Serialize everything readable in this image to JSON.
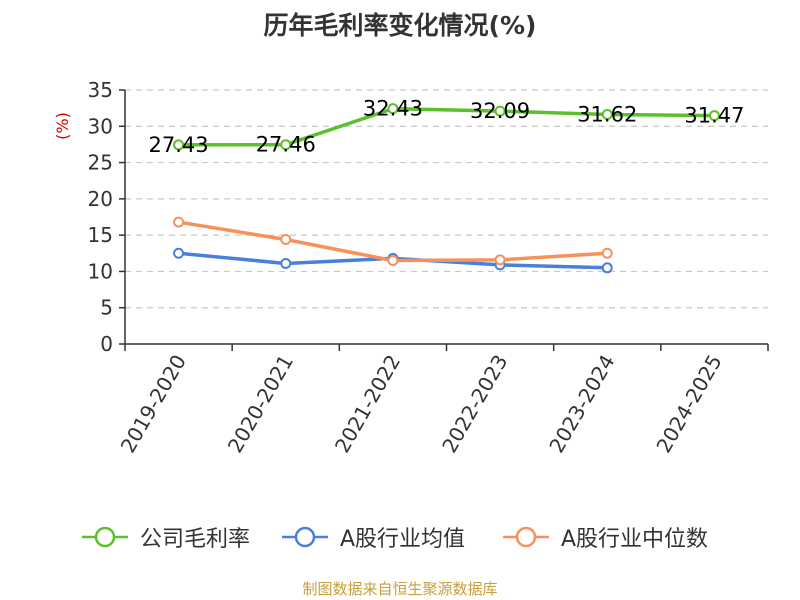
{
  "chart_data": {
    "type": "line",
    "title": "历年毛利率变化情况(%)",
    "ylabel": "(%)",
    "xlabel": "",
    "ylim": [
      0,
      35
    ],
    "yticks": [
      0,
      5,
      10,
      15,
      20,
      25,
      30,
      35
    ],
    "grid": true,
    "legend_position": "bottom",
    "categories": [
      "2019-2020",
      "2020-2021",
      "2021-2022",
      "2022-2023",
      "2023-2024",
      "2024-2025"
    ],
    "series": [
      {
        "name": "公司毛利率",
        "color": "#5cc02a",
        "values": [
          27.43,
          27.46,
          32.43,
          32.09,
          31.62,
          31.47
        ],
        "labels": [
          "27.43",
          "27.46",
          "32.43",
          "32.09",
          "31.62",
          "31.47"
        ]
      },
      {
        "name": "A股行业均值",
        "color": "#4a7fdc",
        "values": [
          12.5,
          11.1,
          11.8,
          10.9,
          10.5,
          null
        ],
        "labels": []
      },
      {
        "name": "A股行业中位数",
        "color": "#f7915a",
        "values": [
          16.8,
          14.4,
          11.5,
          11.6,
          12.5,
          null
        ],
        "labels": []
      }
    ]
  },
  "footer": "制图数据来自恒生聚源数据库"
}
